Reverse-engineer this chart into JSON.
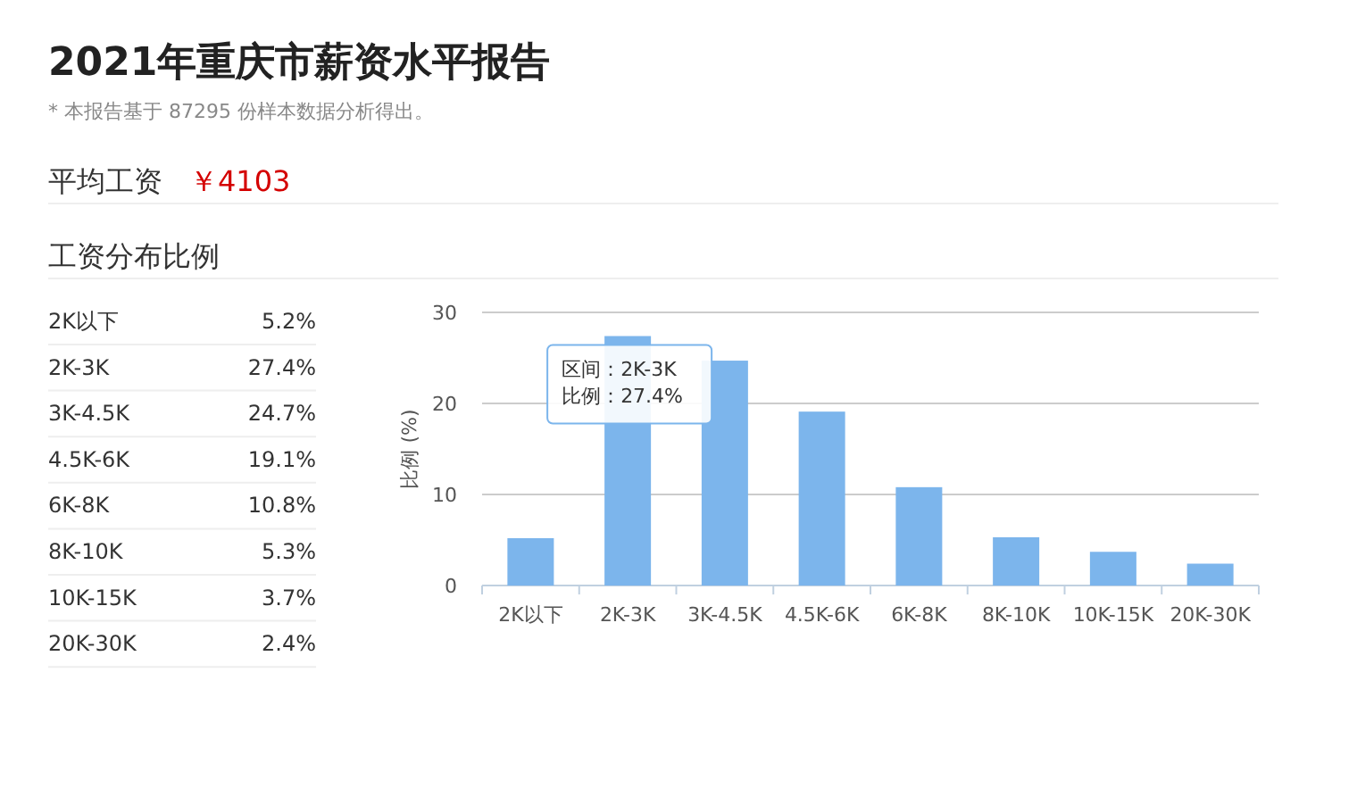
{
  "chart_data": [
    {
      "type": "bar",
      "title": "2021年重庆市薪资水平报告",
      "subtitle": "* 本报告基于 87295 份样本数据分析得出。",
      "annotations": [
        "平均工资",
        "￥4103",
        "工资分布比例",
        {
          "text": "区间：2K-3K\n比例：27.4%",
          "x": "2K-3K",
          "y": 27.4
        }
      ],
      "categories": [
        "2K以下",
        "2K-3K",
        "3K-4.5K",
        "4.5K-6K",
        "6K-8K",
        "8K-10K",
        "10K-15K",
        "20K-30K"
      ],
      "values": [
        5.2,
        27.4,
        24.7,
        19.1,
        10.8,
        5.3,
        3.7,
        2.4
      ],
      "color": "#7cb5ec",
      "ylabel": "比例 (%)",
      "ylim": [
        0,
        30
      ],
      "yticks": [
        0,
        10,
        20,
        30
      ],
      "grid": "y"
    },
    {
      "type": "other",
      "annotations": [
        "2K以下",
        "5.2%",
        "2K-3K",
        "27.4%",
        "3K-4.5K",
        "24.7%",
        "4.5K-6K",
        "19.1%",
        "6K-8K",
        "10.8%",
        "8K-10K",
        "5.3%",
        "10K-15K",
        "3.7%",
        "20K-30K",
        "2.4%"
      ]
    }
  ]
}
